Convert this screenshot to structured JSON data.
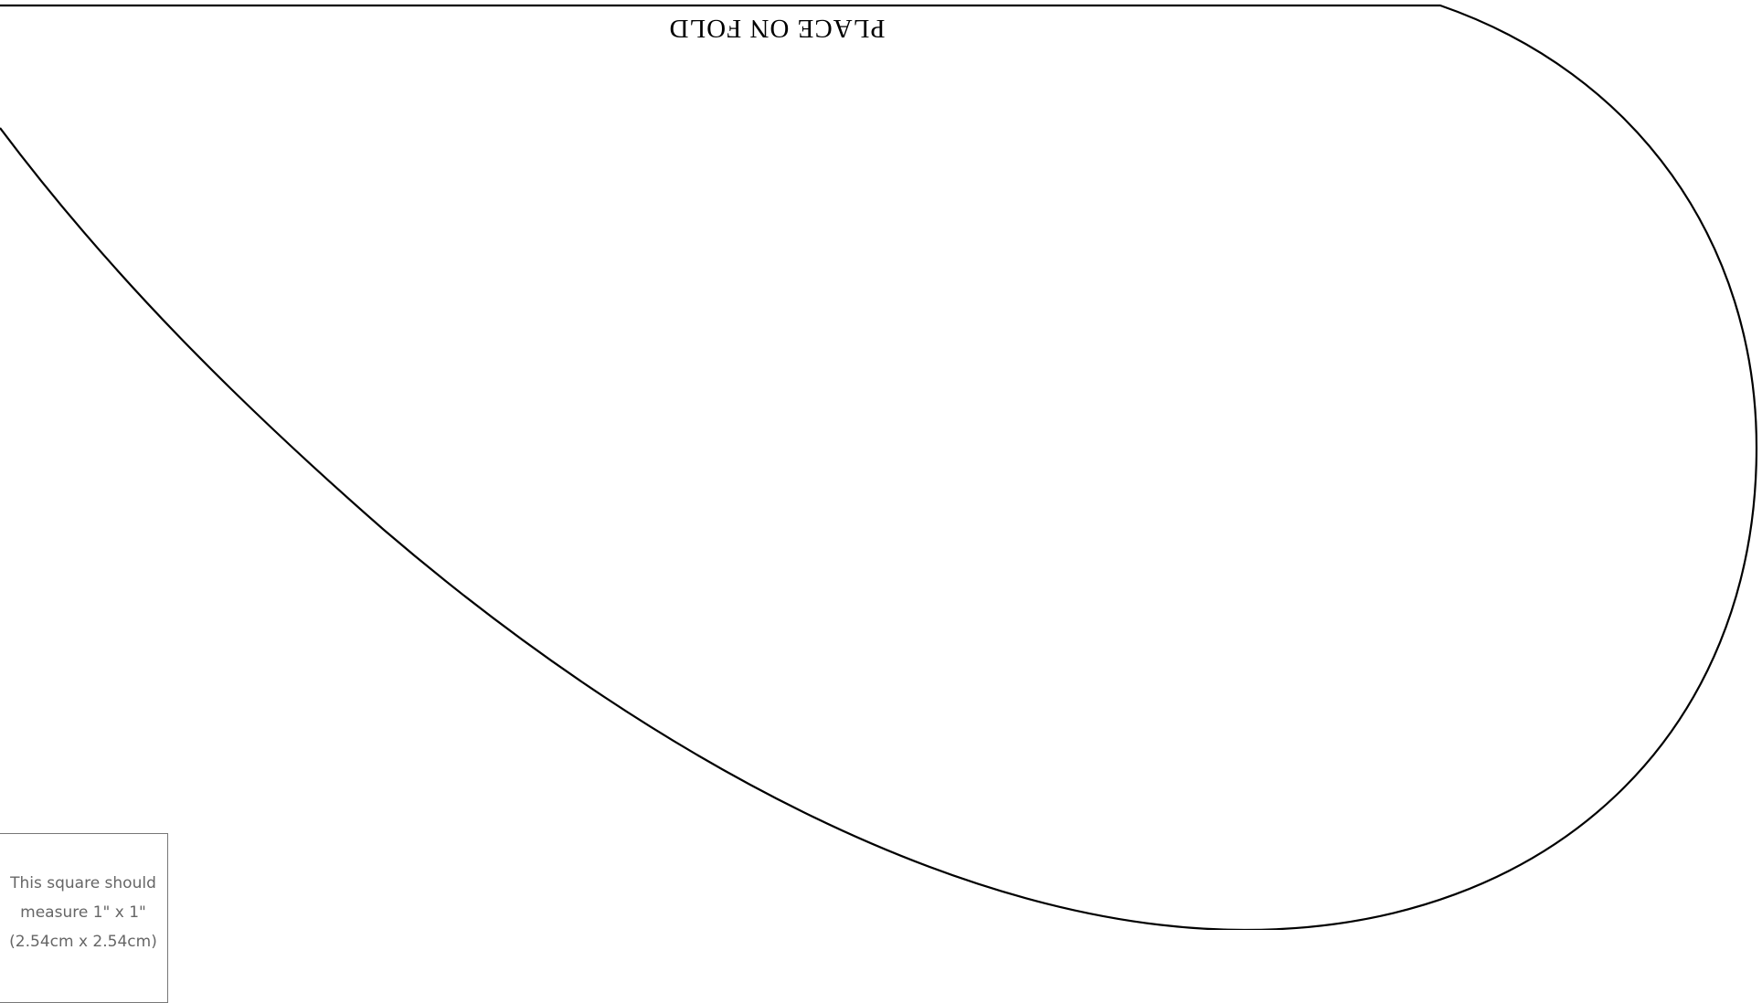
{
  "pattern": {
    "fold_label": "PLACE ON FOLD"
  },
  "scale_square": {
    "line1": "This square should",
    "line2": "measure 1\" x 1\"",
    "line3": "(2.54cm x 2.54cm)"
  },
  "colors": {
    "outline": "#000000",
    "scale_text": "#666666",
    "scale_border": "#777777"
  }
}
